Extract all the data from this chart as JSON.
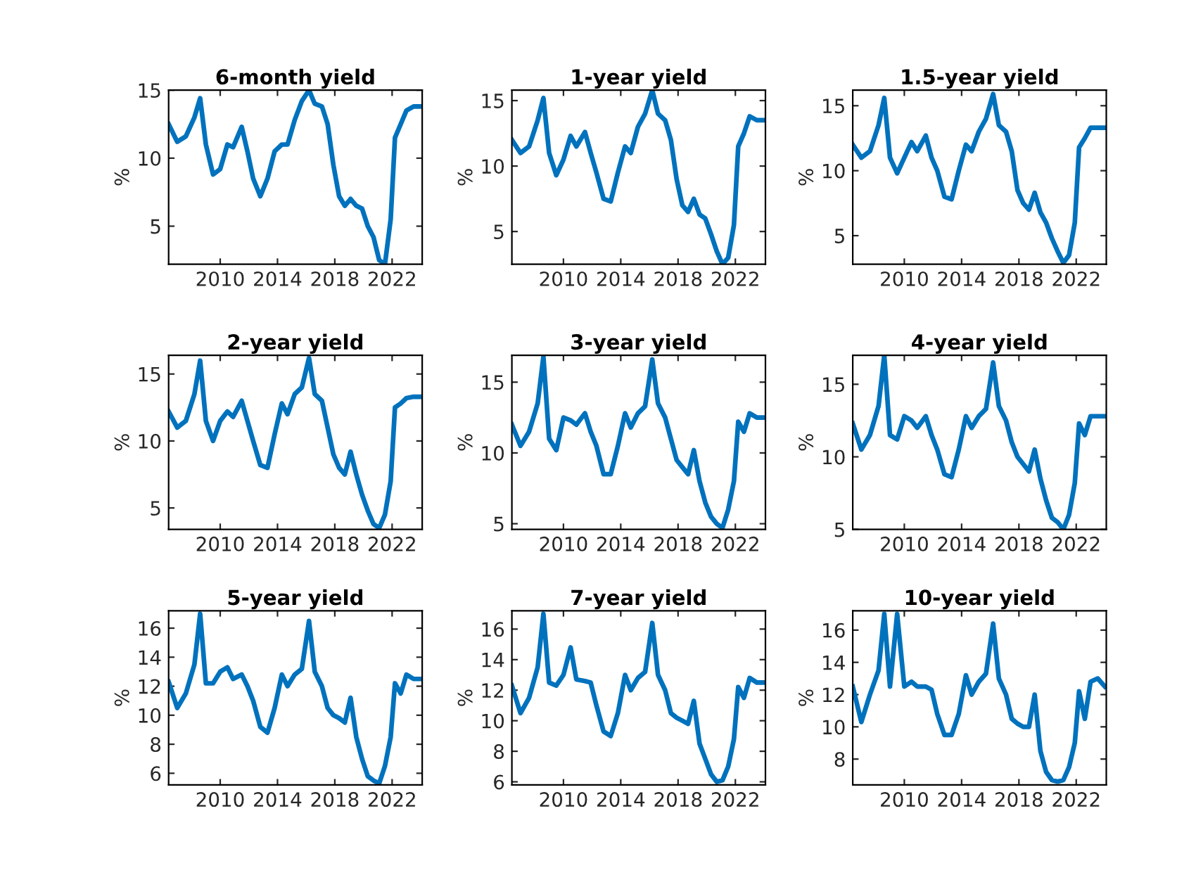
{
  "chart_data": [
    {
      "type": "line",
      "title": "6-month yield",
      "ylabel": "%",
      "xlim": [
        2006.4,
        2024.1
      ],
      "xticks": [
        2010,
        2014,
        2018,
        2022
      ],
      "ylim": [
        2.2,
        15
      ],
      "yticks": [
        5,
        10,
        15
      ],
      "grid": false,
      "legend": false,
      "x": [
        2006.4,
        2007.0,
        2007.6,
        2008.2,
        2008.6,
        2009.0,
        2009.5,
        2010.0,
        2010.5,
        2010.9,
        2011.5,
        2011.9,
        2012.3,
        2012.8,
        2013.3,
        2013.8,
        2014.3,
        2014.7,
        2015.2,
        2015.7,
        2016.2,
        2016.6,
        2017.1,
        2017.5,
        2017.9,
        2018.3,
        2018.7,
        2019.1,
        2019.5,
        2019.9,
        2020.3,
        2020.7,
        2021.1,
        2021.5,
        2021.9,
        2022.2,
        2022.6,
        2023.0,
        2023.5,
        2024.0
      ],
      "series": [
        {
          "color": "#0072bd",
          "values": [
            12.5,
            11.2,
            11.6,
            13.0,
            14.4,
            11.0,
            8.8,
            9.2,
            11.0,
            10.8,
            12.3,
            10.5,
            8.5,
            7.2,
            8.5,
            10.5,
            11.0,
            11.0,
            12.8,
            14.2,
            15.0,
            14.0,
            13.8,
            12.5,
            9.5,
            7.2,
            6.5,
            7.0,
            6.5,
            6.3,
            5.0,
            4.2,
            2.5,
            2.2,
            5.5,
            11.5,
            12.5,
            13.5,
            13.8,
            13.8
          ]
        }
      ]
    },
    {
      "type": "line",
      "title": "1-year yield",
      "ylabel": "%",
      "xlim": [
        2006.4,
        2024.1
      ],
      "xticks": [
        2010,
        2014,
        2018,
        2022
      ],
      "ylim": [
        2.5,
        15.8
      ],
      "yticks": [
        5,
        10,
        15
      ],
      "grid": false,
      "legend": false,
      "x": [
        2006.4,
        2007.0,
        2007.6,
        2008.2,
        2008.6,
        2009.0,
        2009.5,
        2010.0,
        2010.5,
        2010.9,
        2011.5,
        2011.9,
        2012.3,
        2012.8,
        2013.3,
        2013.8,
        2014.3,
        2014.7,
        2015.2,
        2015.7,
        2016.2,
        2016.6,
        2017.1,
        2017.5,
        2017.9,
        2018.3,
        2018.7,
        2019.1,
        2019.5,
        2019.9,
        2020.3,
        2020.7,
        2021.1,
        2021.5,
        2021.9,
        2022.2,
        2022.6,
        2023.0,
        2023.5,
        2024.0
      ],
      "series": [
        {
          "color": "#0072bd",
          "values": [
            12,
            11,
            11.5,
            13.5,
            15.2,
            11,
            9.3,
            10.5,
            12.3,
            11.5,
            12.6,
            11,
            9.5,
            7.5,
            7.3,
            9.5,
            11.5,
            11,
            13,
            14,
            15.8,
            14,
            13.5,
            12,
            9,
            7,
            6.5,
            7.5,
            6.3,
            6,
            4.8,
            3.5,
            2.5,
            3,
            5.5,
            11.5,
            12.5,
            13.8,
            13.5,
            13.5
          ]
        }
      ]
    },
    {
      "type": "line",
      "title": "1.5-year yield",
      "ylabel": "%",
      "xlim": [
        2006.4,
        2024.1
      ],
      "xticks": [
        2010,
        2014,
        2018,
        2022
      ],
      "ylim": [
        2.8,
        16.2
      ],
      "yticks": [
        5,
        10,
        15
      ],
      "grid": false,
      "legend": false,
      "x": [
        2006.4,
        2007.0,
        2007.6,
        2008.2,
        2008.6,
        2009.0,
        2009.5,
        2010.0,
        2010.5,
        2010.9,
        2011.5,
        2011.9,
        2012.3,
        2012.8,
        2013.3,
        2013.8,
        2014.3,
        2014.7,
        2015.2,
        2015.7,
        2016.2,
        2016.6,
        2017.1,
        2017.5,
        2017.9,
        2018.3,
        2018.7,
        2019.1,
        2019.5,
        2019.9,
        2020.3,
        2020.7,
        2021.1,
        2021.5,
        2021.9,
        2022.2,
        2022.6,
        2023.0,
        2023.5,
        2024.0
      ],
      "series": [
        {
          "color": "#0072bd",
          "values": [
            12,
            11,
            11.5,
            13.5,
            15.6,
            11,
            9.8,
            11,
            12.2,
            11.5,
            12.7,
            11,
            10,
            8,
            7.8,
            10,
            12,
            11.5,
            13,
            14,
            15.9,
            13.5,
            13,
            11.5,
            8.5,
            7.5,
            7,
            8.3,
            6.8,
            6,
            4.8,
            3.8,
            2.9,
            3.5,
            6,
            11.8,
            12.5,
            13.3,
            13.3,
            13.3
          ]
        }
      ]
    },
    {
      "type": "line",
      "title": "2-year yield",
      "ylabel": "%",
      "xlim": [
        2006.4,
        2024.1
      ],
      "xticks": [
        2010,
        2014,
        2018,
        2022
      ],
      "ylim": [
        3.4,
        16.4
      ],
      "yticks": [
        5,
        10,
        15
      ],
      "grid": false,
      "legend": false,
      "x": [
        2006.4,
        2007.0,
        2007.6,
        2008.2,
        2008.6,
        2009.0,
        2009.5,
        2010.0,
        2010.5,
        2010.9,
        2011.5,
        2011.9,
        2012.3,
        2012.8,
        2013.3,
        2013.8,
        2014.3,
        2014.7,
        2015.2,
        2015.7,
        2016.2,
        2016.6,
        2017.1,
        2017.5,
        2017.9,
        2018.3,
        2018.7,
        2019.1,
        2019.5,
        2019.9,
        2020.3,
        2020.7,
        2021.1,
        2021.5,
        2021.9,
        2022.2,
        2022.6,
        2023.0,
        2023.5,
        2024.0
      ],
      "series": [
        {
          "color": "#0072bd",
          "values": [
            12.2,
            11,
            11.5,
            13.5,
            16.0,
            11.5,
            10,
            11.5,
            12.2,
            11.8,
            13,
            11.5,
            10,
            8.2,
            8,
            10.5,
            12.8,
            12,
            13.5,
            14,
            16.2,
            13.5,
            13,
            11,
            9,
            8,
            7.5,
            9.2,
            7.5,
            6,
            4.8,
            3.8,
            3.5,
            4.5,
            7,
            12.5,
            12.8,
            13.2,
            13.3,
            13.3
          ]
        }
      ]
    },
    {
      "type": "line",
      "title": "3-year yield",
      "ylabel": "%",
      "xlim": [
        2006.4,
        2024.1
      ],
      "xticks": [
        2010,
        2014,
        2018,
        2022
      ],
      "ylim": [
        4.6,
        16.9
      ],
      "yticks": [
        5,
        10,
        15
      ],
      "grid": false,
      "legend": false,
      "x": [
        2006.4,
        2007.0,
        2007.6,
        2008.2,
        2008.6,
        2009.0,
        2009.5,
        2010.0,
        2010.5,
        2010.9,
        2011.5,
        2011.9,
        2012.3,
        2012.8,
        2013.3,
        2013.8,
        2014.3,
        2014.7,
        2015.2,
        2015.7,
        2016.2,
        2016.6,
        2017.1,
        2017.5,
        2017.9,
        2018.3,
        2018.7,
        2019.1,
        2019.5,
        2019.9,
        2020.3,
        2020.7,
        2021.1,
        2021.5,
        2021.9,
        2022.2,
        2022.6,
        2023.0,
        2023.5,
        2024.0
      ],
      "series": [
        {
          "color": "#0072bd",
          "values": [
            12,
            10.5,
            11.5,
            13.5,
            16.8,
            11,
            10.2,
            12.5,
            12.3,
            12,
            12.8,
            11.5,
            10.5,
            8.5,
            8.5,
            10.5,
            12.8,
            11.8,
            12.8,
            13.3,
            16.6,
            13.5,
            12.5,
            11,
            9.5,
            9,
            8.5,
            10.2,
            8,
            6.5,
            5.5,
            5,
            4.7,
            6,
            8,
            12.2,
            11.5,
            12.8,
            12.5,
            12.5
          ]
        }
      ]
    },
    {
      "type": "line",
      "title": "4-year yield",
      "ylabel": "%",
      "xlim": [
        2006.4,
        2024.1
      ],
      "xticks": [
        2010,
        2014,
        2018,
        2022
      ],
      "ylim": [
        5,
        17
      ],
      "yticks": [
        5,
        10,
        15
      ],
      "grid": false,
      "legend": false,
      "x": [
        2006.4,
        2007.0,
        2007.6,
        2008.2,
        2008.6,
        2009.0,
        2009.5,
        2010.0,
        2010.5,
        2010.9,
        2011.5,
        2011.9,
        2012.3,
        2012.8,
        2013.3,
        2013.8,
        2014.3,
        2014.7,
        2015.2,
        2015.7,
        2016.2,
        2016.6,
        2017.1,
        2017.5,
        2017.9,
        2018.3,
        2018.7,
        2019.1,
        2019.5,
        2019.9,
        2020.3,
        2020.7,
        2021.1,
        2021.5,
        2021.9,
        2022.2,
        2022.6,
        2023.0,
        2023.5,
        2024.0
      ],
      "series": [
        {
          "color": "#0072bd",
          "values": [
            12.3,
            10.5,
            11.5,
            13.5,
            17,
            11.5,
            11.2,
            12.8,
            12.5,
            12,
            12.8,
            11.5,
            10.5,
            8.8,
            8.6,
            10.5,
            12.8,
            12,
            12.8,
            13.3,
            16.5,
            13.5,
            12.5,
            11,
            10,
            9.5,
            9,
            10.5,
            8.5,
            7,
            5.8,
            5.5,
            5,
            6,
            8.2,
            12.3,
            11.5,
            12.8,
            12.8,
            12.8
          ]
        }
      ]
    },
    {
      "type": "line",
      "title": "5-year yield",
      "ylabel": "%",
      "xlim": [
        2006.4,
        2024.1
      ],
      "xticks": [
        2010,
        2014,
        2018,
        2022
      ],
      "ylim": [
        5.2,
        17.2
      ],
      "yticks": [
        6,
        8,
        10,
        12,
        14,
        16
      ],
      "grid": false,
      "legend": false,
      "x": [
        2006.4,
        2007.0,
        2007.6,
        2008.2,
        2008.6,
        2009.0,
        2009.5,
        2010.0,
        2010.5,
        2010.9,
        2011.5,
        2011.9,
        2012.3,
        2012.8,
        2013.3,
        2013.8,
        2014.3,
        2014.7,
        2015.2,
        2015.7,
        2016.2,
        2016.6,
        2017.1,
        2017.5,
        2017.9,
        2018.3,
        2018.7,
        2019.1,
        2019.5,
        2019.9,
        2020.3,
        2020.7,
        2021.1,
        2021.5,
        2021.9,
        2022.2,
        2022.6,
        2023.0,
        2023.5,
        2024.0
      ],
      "series": [
        {
          "color": "#0072bd",
          "values": [
            12.3,
            10.5,
            11.5,
            13.5,
            17.0,
            12.2,
            12.2,
            13,
            13.3,
            12.5,
            12.8,
            12,
            11,
            9.2,
            8.8,
            10.5,
            12.8,
            12,
            12.8,
            13.2,
            16.5,
            13,
            12,
            10.5,
            10,
            9.8,
            9.5,
            11.2,
            8.5,
            7,
            5.8,
            5.5,
            5.3,
            6.5,
            8.5,
            12.2,
            11.5,
            12.8,
            12.5,
            12.5
          ]
        }
      ]
    },
    {
      "type": "line",
      "title": "7-year yield",
      "ylabel": "%",
      "xlim": [
        2006.4,
        2024.1
      ],
      "xticks": [
        2010,
        2014,
        2018,
        2022
      ],
      "ylim": [
        5.8,
        17.2
      ],
      "yticks": [
        6,
        8,
        10,
        12,
        14,
        16
      ],
      "grid": false,
      "legend": false,
      "x": [
        2006.4,
        2007.0,
        2007.6,
        2008.2,
        2008.6,
        2009.0,
        2009.5,
        2010.0,
        2010.5,
        2010.9,
        2011.5,
        2011.9,
        2012.3,
        2012.8,
        2013.3,
        2013.8,
        2014.3,
        2014.7,
        2015.2,
        2015.7,
        2016.2,
        2016.6,
        2017.1,
        2017.5,
        2017.9,
        2018.3,
        2018.7,
        2019.1,
        2019.5,
        2019.9,
        2020.3,
        2020.7,
        2021.1,
        2021.5,
        2021.9,
        2022.2,
        2022.6,
        2023.0,
        2023.5,
        2024.0
      ],
      "series": [
        {
          "color": "#0072bd",
          "values": [
            12.3,
            10.5,
            11.5,
            13.5,
            17.0,
            12.5,
            12.3,
            13,
            14.8,
            12.7,
            12.6,
            12.5,
            11,
            9.3,
            9,
            10.5,
            13,
            12,
            12.8,
            13.2,
            16.4,
            13,
            12,
            10.5,
            10.2,
            10,
            9.8,
            11.3,
            8.5,
            7.5,
            6.5,
            6,
            6.1,
            7,
            8.8,
            12.2,
            11.5,
            12.8,
            12.5,
            12.5
          ]
        }
      ]
    },
    {
      "type": "line",
      "title": "10-year yield",
      "ylabel": "%",
      "xlim": [
        2006.4,
        2024.1
      ],
      "xticks": [
        2010,
        2014,
        2018,
        2022
      ],
      "ylim": [
        6.4,
        17.2
      ],
      "yticks": [
        8,
        10,
        12,
        14,
        16
      ],
      "grid": false,
      "legend": false,
      "x": [
        2006.4,
        2007.0,
        2007.6,
        2008.2,
        2008.6,
        2009.0,
        2009.5,
        2010.0,
        2010.5,
        2010.9,
        2011.5,
        2011.9,
        2012.3,
        2012.8,
        2013.3,
        2013.8,
        2014.3,
        2014.7,
        2015.2,
        2015.7,
        2016.2,
        2016.6,
        2017.1,
        2017.5,
        2017.9,
        2018.3,
        2018.7,
        2019.1,
        2019.5,
        2019.9,
        2020.3,
        2020.7,
        2021.1,
        2021.5,
        2021.9,
        2022.2,
        2022.6,
        2023.0,
        2023.5,
        2024.0
      ],
      "series": [
        {
          "color": "#0072bd",
          "values": [
            12.5,
            10.3,
            12,
            13.5,
            17.0,
            12.5,
            17.0,
            12.5,
            12.8,
            12.5,
            12.5,
            12.3,
            10.8,
            9.5,
            9.5,
            10.8,
            13.2,
            12,
            12.8,
            13.3,
            16.4,
            13,
            12,
            10.5,
            10.2,
            10,
            10,
            12,
            8.5,
            7.2,
            6.7,
            6.6,
            6.7,
            7.5,
            9,
            12.2,
            10.5,
            12.8,
            13,
            12.5
          ]
        }
      ]
    }
  ]
}
